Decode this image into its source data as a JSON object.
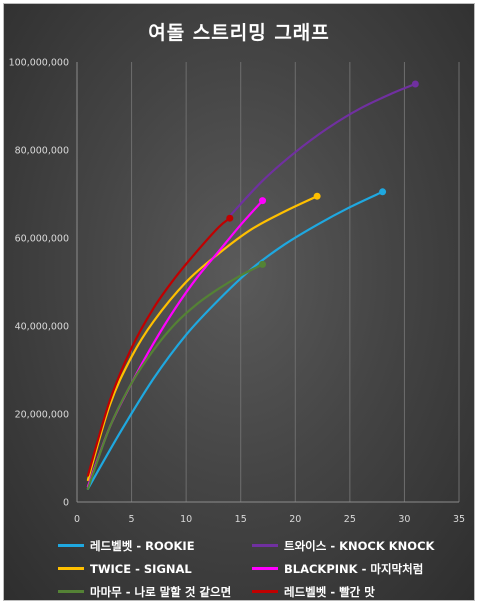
{
  "title": "여돌 스트리밍 그래프",
  "chart_data": {
    "type": "line",
    "title": "여돌 스트리밍 그래프",
    "xlabel": "",
    "ylabel": "",
    "xlim": [
      0,
      35
    ],
    "ylim": [
      0,
      100000000
    ],
    "x_ticks": [
      0,
      5,
      10,
      15,
      20,
      25,
      30,
      35
    ],
    "y_ticks": [
      0,
      20000000,
      40000000,
      60000000,
      80000000,
      100000000
    ],
    "x_tick_labels": [
      "0",
      "5",
      "10",
      "15",
      "20",
      "25",
      "30",
      "35"
    ],
    "y_tick_labels": [
      "0",
      "20,000,000",
      "40,000,000",
      "60,000,000",
      "80,000,000",
      "100,000,000"
    ],
    "grid": "vertical",
    "legend_position": "bottom",
    "series": [
      {
        "name": "레드벨벳 - ROOKIE",
        "color": "#1fa8e0",
        "x": [
          1,
          4,
          7,
          10,
          13,
          16,
          19,
          22,
          25,
          28
        ],
        "y": [
          3000000,
          16000000,
          28000000,
          38000000,
          46000000,
          53000000,
          58500000,
          63000000,
          67000000,
          70500000
        ]
      },
      {
        "name": "트와이스 - KNOCK KNOCK",
        "color": "#7030a0",
        "x": [
          14,
          17,
          20,
          23,
          26,
          29,
          31
        ],
        "y": [
          65000000,
          73000000,
          79500000,
          85000000,
          89500000,
          93000000,
          95000000
        ]
      },
      {
        "name": "TWICE - SIGNAL",
        "color": "#ffc000",
        "x": [
          1,
          3,
          5,
          7,
          10,
          13,
          16,
          19,
          22
        ],
        "y": [
          5000000,
          22000000,
          33000000,
          41000000,
          50000000,
          56500000,
          62000000,
          66000000,
          69500000
        ]
      },
      {
        "name": "BLACKPINK - 마지막처럼",
        "color": "#ff00ff",
        "x": [
          1,
          3,
          5,
          7,
          9,
          11,
          13,
          15,
          17
        ],
        "y": [
          3500000,
          17000000,
          27000000,
          36000000,
          44000000,
          51000000,
          57000000,
          63000000,
          68500000
        ]
      },
      {
        "name": "마마무 - 나로 말할 것 같으면",
        "color": "#548235",
        "x": [
          1,
          3,
          5,
          7,
          9,
          11,
          13,
          15,
          17
        ],
        "y": [
          3000000,
          17000000,
          27000000,
          34500000,
          40500000,
          45000000,
          48500000,
          51500000,
          54000000
        ]
      },
      {
        "name": "레드벨벳 - 빨간 맛",
        "color": "#c00000",
        "x": [
          1,
          3,
          5,
          7,
          9,
          11,
          13,
          14
        ],
        "y": [
          6000000,
          23000000,
          35000000,
          44000000,
          51000000,
          57000000,
          62500000,
          64500000
        ]
      }
    ],
    "legend_order": [
      0,
      1,
      2,
      3,
      4,
      5
    ]
  }
}
